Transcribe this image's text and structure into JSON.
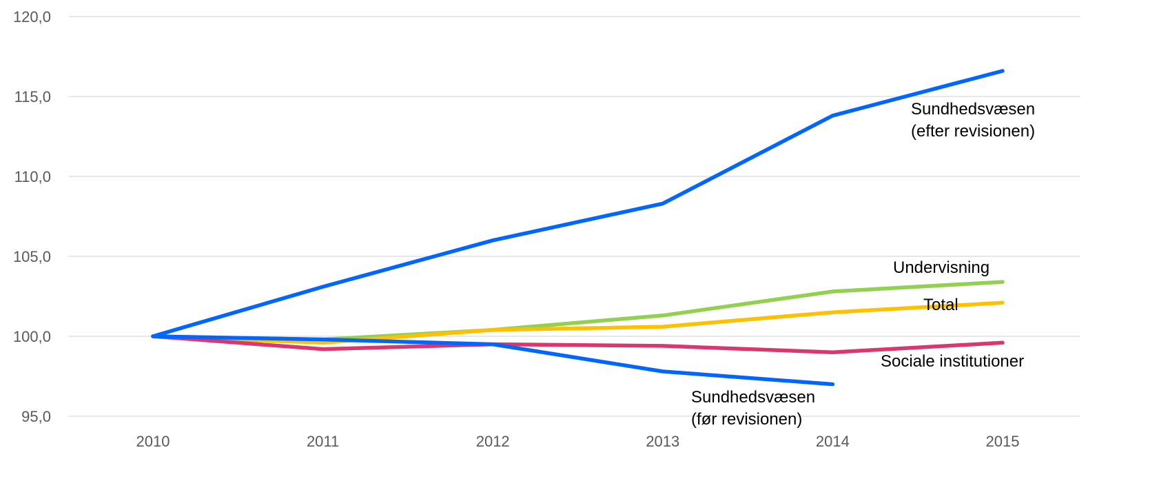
{
  "chart_data": {
    "type": "line",
    "title": "",
    "xlabel": "",
    "ylabel": "",
    "categories": [
      "2010",
      "2011",
      "2012",
      "2013",
      "2014",
      "2015"
    ],
    "y_tick_labels": [
      "95,0",
      "100,0",
      "105,0",
      "110,0",
      "115,0",
      "120,0"
    ],
    "ylim": [
      95,
      120
    ],
    "grid": true,
    "series": [
      {
        "key": "sundhed_efter",
        "label_lines": [
          "Sundhedsvæsen",
          "(efter revisionen)"
        ],
        "color": "#0066ff",
        "values": [
          100.0,
          103.1,
          106.0,
          108.3,
          113.8,
          116.6
        ]
      },
      {
        "key": "undervisning",
        "label_lines": [
          "Undervisning"
        ],
        "color": "#92d050",
        "values": [
          100.0,
          99.8,
          100.4,
          101.3,
          102.8,
          103.4
        ]
      },
      {
        "key": "total",
        "label_lines": [
          "Total"
        ],
        "color": "#ffc000",
        "values": [
          100.0,
          99.6,
          100.4,
          100.6,
          101.5,
          102.1
        ]
      },
      {
        "key": "sociale",
        "label_lines": [
          "Sociale institutioner"
        ],
        "color": "#d9376e",
        "values": [
          100.0,
          99.2,
          99.5,
          99.4,
          99.0,
          99.6
        ]
      },
      {
        "key": "sundhed_for",
        "label_lines": [
          "Sundhedsvæsen",
          "(før revisionen)"
        ],
        "color": "#0066ff",
        "values": [
          100.0,
          99.8,
          99.5,
          97.8,
          97.0,
          null
        ]
      }
    ]
  }
}
